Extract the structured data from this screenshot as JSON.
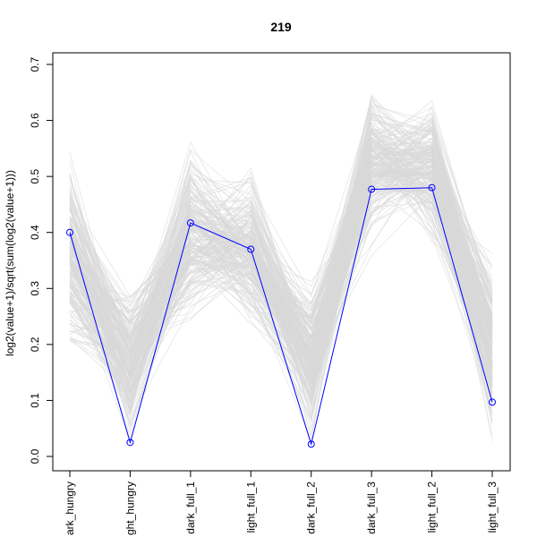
{
  "chart_data": {
    "type": "line",
    "title": "219",
    "xlabel": "",
    "ylabel": "log2(value+1)/sqrt(sum(log2(value+1)))",
    "ylim": [
      0,
      0.7
    ],
    "y_ticks": [
      "0.0",
      "0.1",
      "0.2",
      "0.3",
      "0.4",
      "0.5",
      "0.6",
      "0.7"
    ],
    "categories": [
      "dark_hungry",
      "light_hungry",
      "dark_full_1",
      "light_full_1",
      "dark_full_2",
      "dark_full_3",
      "light_full_2",
      "light_full_3"
    ],
    "category_labels_visible": [
      "ark_hungry",
      "ght_hungry",
      "dark_full_1",
      "light_full_1",
      "dark_full_2",
      "dark_full_3",
      "light_full_2",
      "light_full_3"
    ],
    "highlight_series": {
      "values": [
        0.4,
        0.025,
        0.417,
        0.37,
        0.022,
        0.477,
        0.48,
        0.097
      ],
      "color": "#0000ff"
    },
    "background_series": {
      "color": "#d9d9d9",
      "count": 220,
      "ranges": [
        [
          0.14,
          0.58
        ],
        [
          0.0,
          0.33
        ],
        [
          0.22,
          0.58
        ],
        [
          0.21,
          0.54
        ],
        [
          0.0,
          0.34
        ],
        [
          0.35,
          0.69
        ],
        [
          0.36,
          0.66
        ],
        [
          0.0,
          0.39
        ]
      ]
    },
    "grid": false,
    "legend": "none"
  }
}
